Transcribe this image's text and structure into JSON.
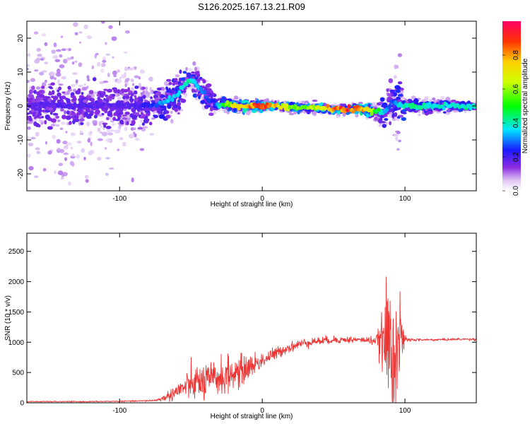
{
  "page_title": "S126.2025.167.13.21.R09",
  "chart_data": [
    {
      "type": "heatmap",
      "title": "S126.2025.167.13.21.R09",
      "xlabel": "Height of straight line (km)",
      "ylabel": "Frequency (Hz)",
      "xlim": [
        -165,
        150
      ],
      "ylim": [
        -25,
        25
      ],
      "x_ticks": [
        -100,
        0,
        100
      ],
      "y_ticks": [
        -20,
        -10,
        0,
        10,
        20
      ],
      "colorbar": {
        "label": "Normalized spectral amplitude",
        "range": [
          0.0,
          1.0
        ],
        "ticks": [
          "0.0",
          "0.2",
          "0.4",
          "0.6",
          "0.8"
        ],
        "tick_values": [
          0.0,
          0.2,
          0.4,
          0.6,
          0.8
        ]
      },
      "ridge": {
        "x": [
          -165,
          -150,
          -130,
          -110,
          -90,
          -80,
          -70,
          -60,
          -55,
          -50,
          -45,
          -40,
          -35,
          -32,
          -28,
          -20,
          -10,
          0,
          10,
          20,
          30,
          40,
          50,
          60,
          70,
          80,
          85,
          88,
          90,
          92,
          95,
          100,
          110,
          120,
          130,
          140,
          150
        ],
        "freq": [
          0,
          0.5,
          0,
          0.5,
          0,
          0,
          1,
          3,
          6,
          8,
          6,
          3,
          1,
          0,
          0.5,
          0,
          0,
          0,
          0,
          -0.5,
          -0.5,
          -0.5,
          -1,
          -1,
          -1,
          -1.5,
          -2,
          -1,
          0,
          2,
          0.5,
          0,
          0,
          0,
          0,
          0,
          0
        ],
        "amplitude": [
          0.18,
          0.2,
          0.2,
          0.2,
          0.2,
          0.25,
          0.35,
          0.4,
          0.42,
          0.45,
          0.38,
          0.3,
          0.25,
          0.3,
          0.5,
          0.75,
          0.9,
          1.0,
          0.8,
          0.65,
          0.6,
          0.72,
          0.9,
          0.95,
          0.88,
          0.55,
          0.4,
          0.35,
          0.3,
          0.3,
          0.4,
          0.45,
          0.45,
          0.42,
          0.42,
          0.45,
          0.42
        ]
      },
      "spread_hz": {
        "x": [
          -165,
          -120,
          -90,
          -80,
          -60,
          -40,
          -30,
          -10,
          20,
          60,
          80,
          90,
          92,
          95,
          100,
          150
        ],
        "value": [
          22,
          20,
          14,
          6,
          5,
          4,
          2,
          1.5,
          1.2,
          1.2,
          2,
          6,
          10,
          17,
          2,
          1
        ]
      }
    },
    {
      "type": "line",
      "xlabel": "Height of straight line (km)",
      "ylabel": "SNR (10 * v/v)",
      "xlim": [
        -165,
        150
      ],
      "ylim": [
        0,
        2800
      ],
      "x_ticks": [
        -100,
        0,
        100
      ],
      "y_ticks": [
        0,
        500,
        1000,
        1500,
        2000,
        2500
      ],
      "color": "#ee3333",
      "series": [
        {
          "name": "SNR",
          "x": [
            -165,
            -140,
            -120,
            -100,
            -85,
            -75,
            -70,
            -65,
            -60,
            -55,
            -50,
            -45,
            -40,
            -35,
            -30,
            -25,
            -20,
            -15,
            -10,
            -5,
            0,
            5,
            10,
            15,
            20,
            25,
            30,
            35,
            40,
            45,
            50,
            55,
            60,
            65,
            70,
            75,
            80,
            85,
            88,
            90,
            92,
            95,
            97,
            100,
            105,
            110,
            120,
            130,
            140,
            150
          ],
          "values": [
            20,
            20,
            20,
            25,
            30,
            40,
            70,
            120,
            190,
            250,
            300,
            340,
            330,
            380,
            420,
            450,
            480,
            520,
            580,
            640,
            700,
            760,
            820,
            880,
            920,
            960,
            990,
            1010,
            1020,
            1030,
            1040,
            1040,
            1040,
            1040,
            1040,
            1030,
            1030,
            1020,
            1000,
            900,
            950,
            1000,
            1050,
            1040,
            1040,
            1040,
            1040,
            1045,
            1050,
            1050
          ],
          "noise_amplitude": [
            8,
            8,
            8,
            10,
            12,
            20,
            40,
            90,
            140,
            200,
            250,
            300,
            320,
            300,
            320,
            300,
            280,
            250,
            220,
            180,
            140,
            120,
            100,
            90,
            80,
            80,
            75,
            70,
            70,
            65,
            60,
            55,
            55,
            50,
            50,
            60,
            90,
            500,
            1100,
            1300,
            1300,
            1100,
            500,
            60,
            25,
            20,
            20,
            20,
            20,
            20
          ]
        }
      ]
    }
  ]
}
